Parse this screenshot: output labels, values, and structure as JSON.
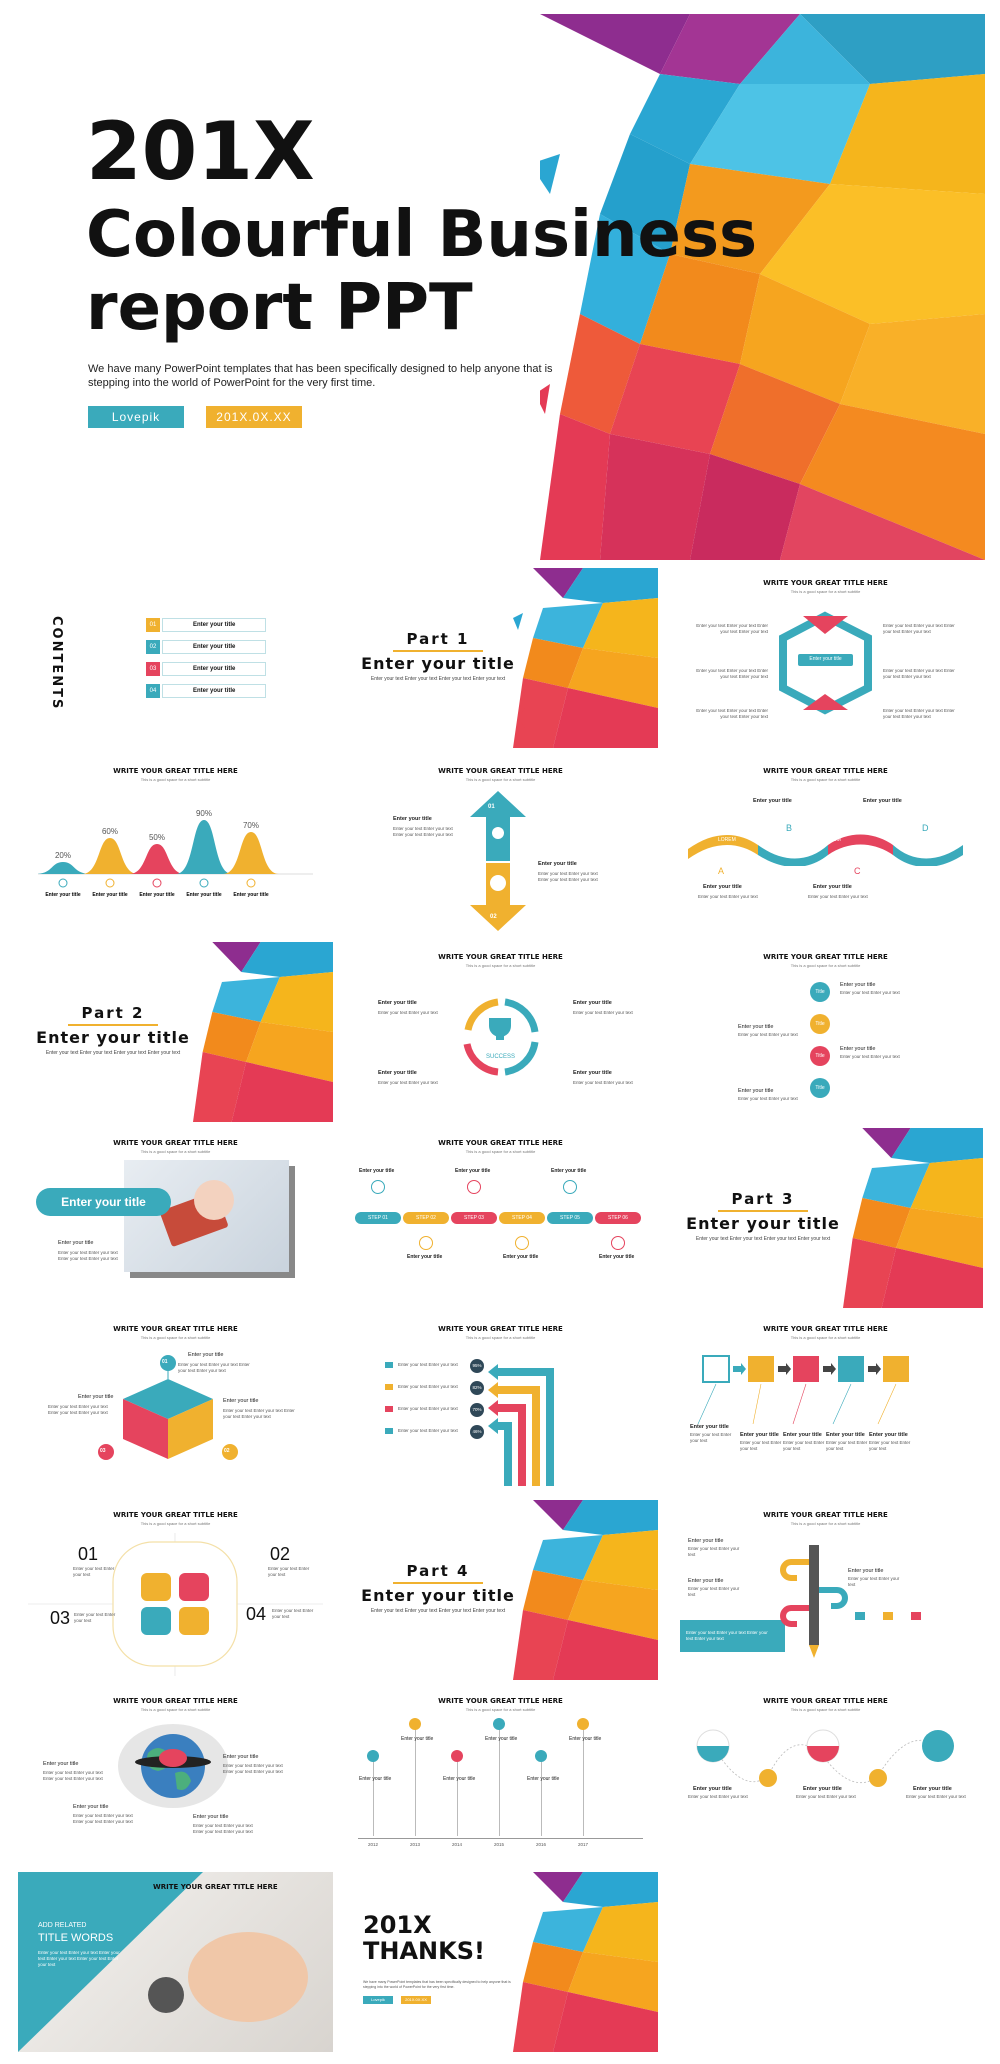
{
  "hero": {
    "title_line1": "201X",
    "title_line2": "Colourful Business",
    "title_line3": "report PPT",
    "subtitle": "We have many PowerPoint templates that has been specifically designed to help anyone that is stepping into the world of PowerPoint for the very first time.",
    "tag_brand": "Lovepik",
    "tag_date": "201X.0X.XX"
  },
  "common": {
    "slide_title": "WRITE YOUR GREAT TITLE HERE",
    "slide_subtitle": "This is a good space for a short subtitle",
    "enter_title": "Enter your title",
    "enter_text": "Enter your text Enter your text",
    "enter_text_long": "Enter your text Enter your text Enter your text Enter your text"
  },
  "contents": {
    "heading": "CONTENTS",
    "items": [
      {
        "num": "01",
        "label": "Enter your title",
        "color": "#f0b12f"
      },
      {
        "num": "02",
        "label": "Enter your title",
        "color": "#3aaabb"
      },
      {
        "num": "03",
        "label": "Enter your title",
        "color": "#e5445e"
      },
      {
        "num": "04",
        "label": "Enter your title",
        "color": "#3aaabb"
      }
    ]
  },
  "parts": [
    {
      "label": "Part 1",
      "title": "Enter your title",
      "sub": "Enter your text Enter your text Enter your text Enter your text"
    },
    {
      "label": "Part 2",
      "title": "Enter your title",
      "sub": "Enter your text Enter your text Enter your text Enter your text"
    },
    {
      "label": "Part 3",
      "title": "Enter your title",
      "sub": "Enter your text Enter your text Enter your text Enter your text"
    },
    {
      "label": "Part 4",
      "title": "Enter your title",
      "sub": "Enter your text Enter your text Enter your text Enter your text"
    }
  ],
  "hexagon": {
    "center_label": "Enter your title"
  },
  "peaks": {
    "percents": [
      "20%",
      "60%",
      "50%",
      "90%",
      "70%"
    ],
    "values": [
      20,
      60,
      50,
      90,
      70
    ],
    "colors": [
      "#3aaabb",
      "#f0b12f",
      "#e5445e",
      "#3aaabb",
      "#f0b12f"
    ]
  },
  "arrows": {
    "n1": "01",
    "n2": "02"
  },
  "wave": {
    "letters": [
      "A",
      "B",
      "C",
      "D"
    ],
    "lorem": "LOREM"
  },
  "cycle": {
    "center": "SUCCESS"
  },
  "titles_list": {
    "badge": "Title"
  },
  "photo_slide": {
    "banner": "Enter your title",
    "caption": "Enter your title"
  },
  "steps": {
    "labels": [
      "STEP 01",
      "STEP 02",
      "STEP 03",
      "STEP 04",
      "STEP 05",
      "STEP 06"
    ]
  },
  "cube": {
    "n1": "01",
    "n2": "02",
    "n3": "03"
  },
  "bars": {
    "percents": [
      "95%",
      "82%",
      "70%",
      "46%"
    ]
  },
  "quad": {
    "n1": "01",
    "n2": "02",
    "n3": "03",
    "n4": "04"
  },
  "timeline": {
    "years": [
      "2012",
      "2013",
      "2014",
      "2015",
      "2016",
      "2017"
    ]
  },
  "final_slide": {
    "kicker": "ADD RELATED",
    "heading": "TITLE WORDS",
    "text": "Enter your text Enter your text Enter your text Enter your text Enter your text Enter your text"
  },
  "thanks": {
    "line1": "201X",
    "line2": "THANKS!",
    "sub": "We have many PowerPoint templates that has been specifically designed to help anyone that is stepping into the world of PowerPoint for the very first time.",
    "tag_brand": "Lovepik",
    "tag_date": "201X.0X.XX"
  },
  "colors": {
    "teal": "#3aaabb",
    "yellow": "#f0b12f",
    "red": "#e5445e",
    "orange": "#f5871f",
    "purple": "#8e2d8f"
  }
}
